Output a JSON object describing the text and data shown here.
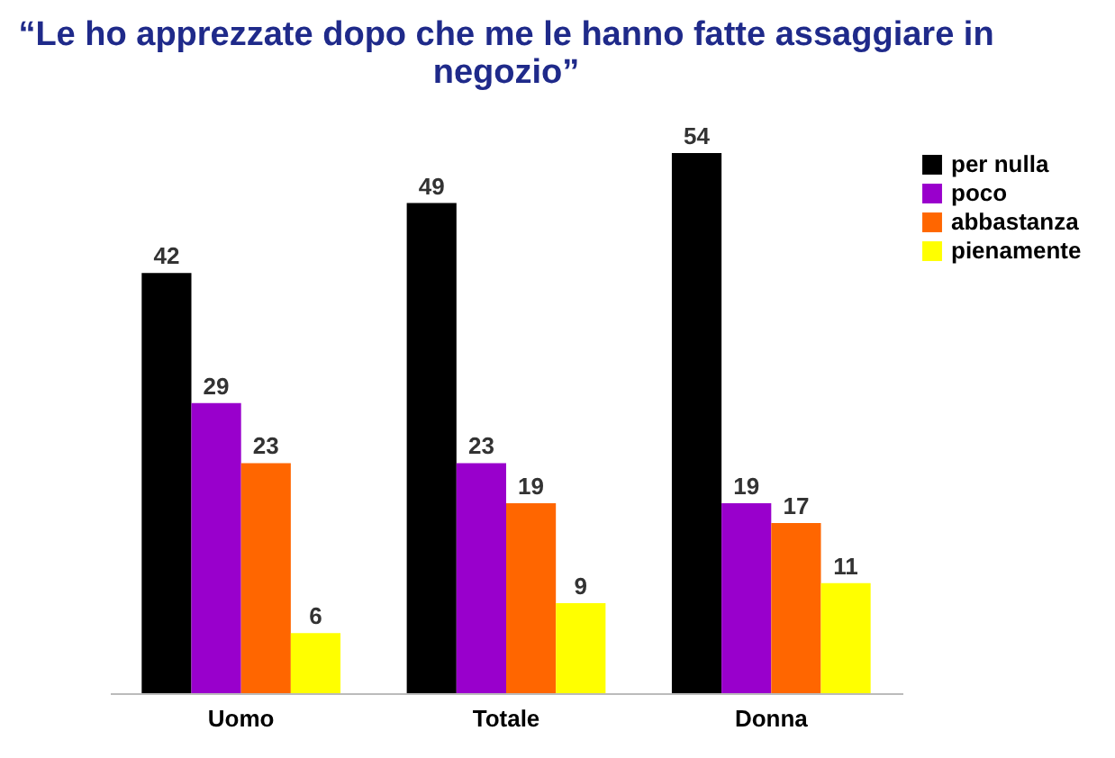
{
  "chart_data": {
    "type": "bar",
    "title": "“Le ho apprezzate dopo che me le hanno fatte assaggiare in negozio”",
    "categories": [
      "Uomo",
      "Totale",
      "Donna"
    ],
    "series": [
      {
        "name": "per nulla",
        "color": "#000000",
        "values": [
          42,
          49,
          54
        ]
      },
      {
        "name": "poco",
        "color": "#9900cc",
        "values": [
          29,
          23,
          19
        ]
      },
      {
        "name": "abbastanza",
        "color": "#ff6600",
        "values": [
          23,
          19,
          17
        ]
      },
      {
        "name": "pienamente",
        "color": "#ffff00",
        "values": [
          6,
          9,
          11
        ]
      }
    ],
    "data_labels": true,
    "legend": "top right"
  }
}
